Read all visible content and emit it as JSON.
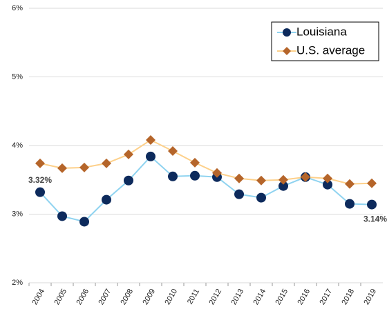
{
  "chart_data": {
    "type": "line",
    "categories": [
      "2004",
      "2005",
      "2006",
      "2007",
      "2008",
      "2009",
      "2010",
      "2011",
      "2012",
      "2013",
      "2014",
      "2015",
      "2016",
      "2017",
      "2018",
      "2019"
    ],
    "series": [
      {
        "name": "Louisiana",
        "color": "#0d2a5c",
        "line_color": "#8fd3f0",
        "values": [
          3.32,
          2.97,
          2.89,
          3.21,
          3.49,
          3.84,
          3.55,
          3.56,
          3.54,
          3.29,
          3.24,
          3.41,
          3.54,
          3.43,
          3.15,
          3.14
        ],
        "value_labels": [
          "3.32%",
          null,
          null,
          null,
          null,
          null,
          null,
          null,
          null,
          null,
          null,
          null,
          null,
          null,
          null,
          "3.14%"
        ]
      },
      {
        "name": "U.S. average",
        "color": "#b5652a",
        "line_color": "#fdd08a",
        "values": [
          3.74,
          3.67,
          3.68,
          3.74,
          3.87,
          4.08,
          3.92,
          3.75,
          3.6,
          3.52,
          3.49,
          3.5,
          3.54,
          3.52,
          3.44,
          3.45
        ]
      }
    ],
    "ylim": [
      2,
      6
    ],
    "yticks": [
      {
        "value": 2,
        "label": "2%"
      },
      {
        "value": 3,
        "label": "3%"
      },
      {
        "value": 4,
        "label": "4%"
      },
      {
        "value": 5,
        "label": "5%"
      },
      {
        "value": 6,
        "label": "6%"
      }
    ],
    "grid": true,
    "legend": "upper right"
  }
}
